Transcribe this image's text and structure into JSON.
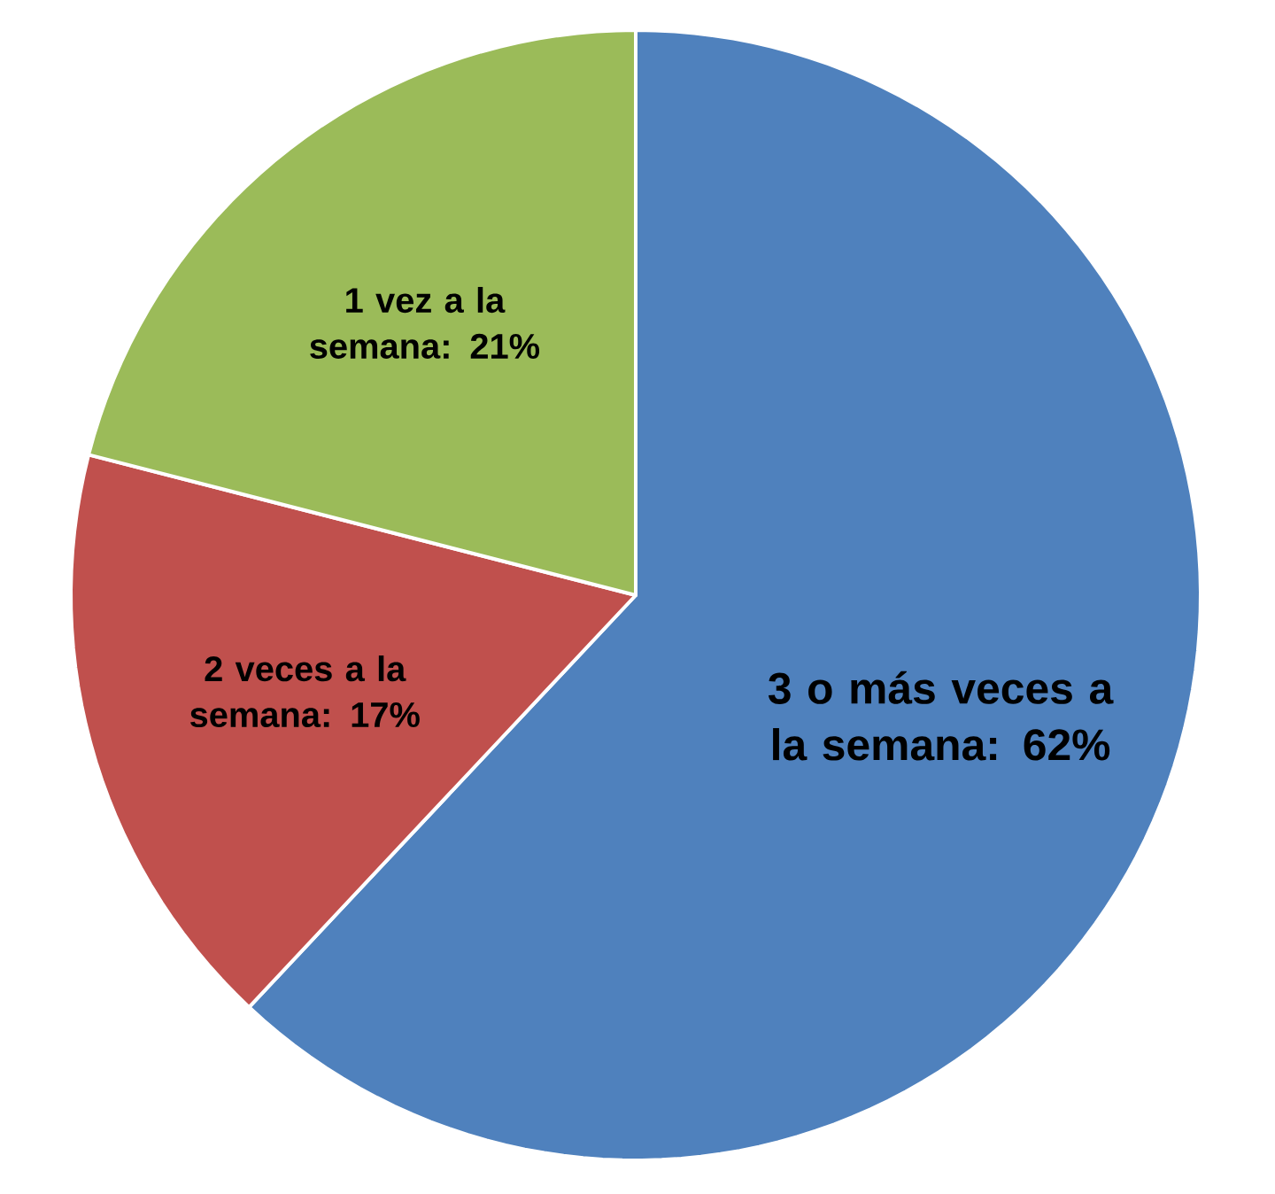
{
  "chart_data": {
    "type": "pie",
    "categories": [
      "3 o más veces a la semana",
      "2 veces a la semana",
      "1 vez a la semana"
    ],
    "values": [
      62,
      17,
      21
    ],
    "colors": [
      "#4f81bd",
      "#c0504d",
      "#9bbb59"
    ],
    "value_labels": [
      ": 62%",
      ": 17%",
      ": 21%"
    ]
  }
}
